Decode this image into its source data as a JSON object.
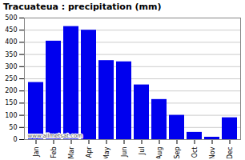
{
  "chart_data": {
    "type": "bar",
    "title": "Tracuateua : precipitation (mm)",
    "categories": [
      "Jan",
      "Feb",
      "Mar",
      "Apr",
      "May",
      "Jun",
      "Jul",
      "Aug",
      "Sep",
      "Oct",
      "Nov",
      "Dec"
    ],
    "values": [
      235,
      405,
      465,
      450,
      325,
      320,
      225,
      165,
      100,
      30,
      10,
      90
    ],
    "color": "#0000ee",
    "ylim": [
      0,
      500
    ],
    "yticks": [
      0,
      50,
      100,
      150,
      200,
      250,
      300,
      350,
      400,
      450,
      500
    ],
    "grid": true,
    "annotations": [
      "www.allmetsat.com"
    ]
  }
}
